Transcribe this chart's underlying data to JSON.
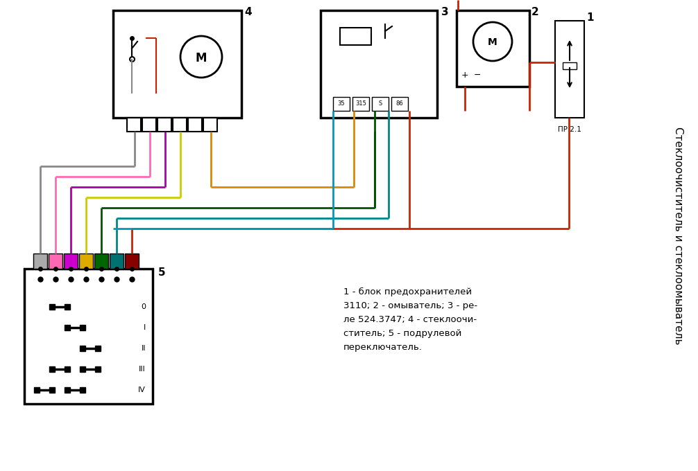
{
  "title_right": "Стеклоочиститель и стеклоомыватель",
  "description": "1 - блок предохранителей\n3110; 2 - омыватель; 3 - ре-\nле 524.3747; 4 - стеклоочи-\nститель; 5 - подрулевой\nпереключатель.",
  "label1": "1",
  "label2": "2",
  "label3": "3",
  "label4": "4",
  "label5": "5",
  "label_pr": "ПР 2.1",
  "connector_colors": [
    "#aaaaaa",
    "#ff69b4",
    "#cc00cc",
    "#ddaa00",
    "#006600",
    "#007070",
    "#880000"
  ],
  "bg_color": "#ffffff",
  "c_red": "#cc2200",
  "c_orange": "#dd8800",
  "c_yellow": "#cccc00",
  "c_green": "#00aa00",
  "c_blue": "#0099bb",
  "c_purple": "#aa00aa",
  "c_gray": "#888888",
  "c_cyan": "#008888",
  "c_dgreen": "#005500"
}
